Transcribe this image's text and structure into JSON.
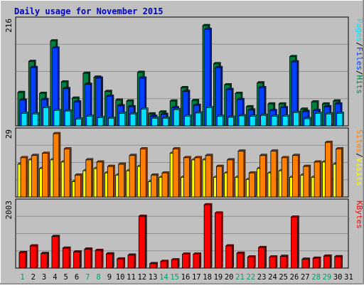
{
  "chart_data": {
    "title": "Daily usage for November 2015",
    "type": "bar",
    "days": [
      1,
      2,
      3,
      4,
      5,
      6,
      7,
      8,
      9,
      10,
      11,
      12,
      13,
      14,
      15,
      16,
      17,
      18,
      19,
      20,
      21,
      22,
      23,
      24,
      25,
      26,
      27,
      28,
      29,
      30,
      31
    ],
    "weekend_days": [
      1,
      7,
      8,
      14,
      15,
      21,
      22,
      28,
      29
    ],
    "colors": {
      "background": "#c0c0c0",
      "title": "#0000cc",
      "hits": "#008040",
      "files": "#0040ff",
      "pages": "#00e0ff",
      "visits": "#ffff00",
      "sites": "#ff8000",
      "kbytes": "#ff0000",
      "weekend_label": "#00a060"
    },
    "panels": [
      {
        "id": "hits_files_pages",
        "axis_max_label": "216",
        "ymax": 216,
        "legend": [
          {
            "text": "Pages",
            "color": "#00e0ff"
          },
          {
            "text": "/",
            "color": "#000000"
          },
          {
            "text": "Files",
            "color": "#0040ff"
          },
          {
            "text": "/",
            "color": "#000000"
          },
          {
            "text": "Hits",
            "color": "#008040"
          }
        ],
        "series": [
          {
            "name": "Hits",
            "values": [
              70,
              135,
              68,
              178,
              92,
              58,
              110,
              102,
              72,
              54,
              52,
              112,
              25,
              29,
              52,
              80,
              53,
              210,
              130,
              86,
              68,
              40,
              90,
              46,
              46,
              145,
              35,
              50,
              46,
              52,
              0
            ]
          },
          {
            "name": "Files",
            "values": [
              54,
              122,
              55,
              163,
              78,
              50,
              87,
              100,
              62,
              42,
              40,
              100,
              20,
              24,
              38,
              72,
              43,
              202,
              122,
              76,
              55,
              33,
              80,
              32,
              38,
              134,
              30,
              32,
              40,
              46,
              0
            ]
          },
          {
            "name": "Pages",
            "values": [
              26,
              25,
              38,
              32,
              31,
              14,
              20,
              17,
              16,
              26,
              25,
              35,
              16,
              16,
              34,
              20,
              27,
              38,
              20,
              18,
              21,
              20,
              22,
              20,
              20,
              28,
              15,
              26,
              25,
              26,
              0
            ]
          }
        ]
      },
      {
        "id": "visits_sites",
        "axis_max_label": "29",
        "ymax": 29,
        "legend": [
          {
            "text": "Sites",
            "color": "#ff8000"
          },
          {
            "text": "/",
            "color": "#000000"
          },
          {
            "text": "Visits",
            "color": "#ffff00"
          }
        ],
        "series": [
          {
            "name": "Visits",
            "values": [
              15,
              17,
              13,
              17,
              16,
              7,
              12,
              13,
              11,
              10,
              12,
              14,
              7,
              9,
              20,
              9,
              17,
              17,
              9,
              11,
              9,
              8,
              13,
              11,
              12,
              9,
              10,
              9,
              16,
              15,
              0
            ]
          },
          {
            "name": "Sites",
            "values": [
              18,
              19,
              20,
              29,
              22,
              10,
              17,
              16,
              14,
              15,
              19,
              22,
              10,
              11,
              22,
              18,
              18,
              19,
              14,
              17,
              21,
              11,
              19,
              21,
              18,
              19,
              14,
              16,
              25,
              22,
              0
            ]
          }
        ]
      },
      {
        "id": "kbytes",
        "axis_max_label": "2003",
        "ymax": 2003,
        "legend": [
          {
            "text": "KBytes",
            "color": "#ff0000"
          }
        ],
        "series": [
          {
            "name": "KBytes",
            "values": [
              490,
              700,
              460,
              1000,
              630,
              510,
              600,
              560,
              450,
              290,
              410,
              1640,
              140,
              210,
              260,
              440,
              440,
              2003,
              1740,
              700,
              470,
              350,
              650,
              350,
              370,
              1610,
              280,
              310,
              380,
              360,
              0
            ]
          }
        ]
      }
    ]
  }
}
